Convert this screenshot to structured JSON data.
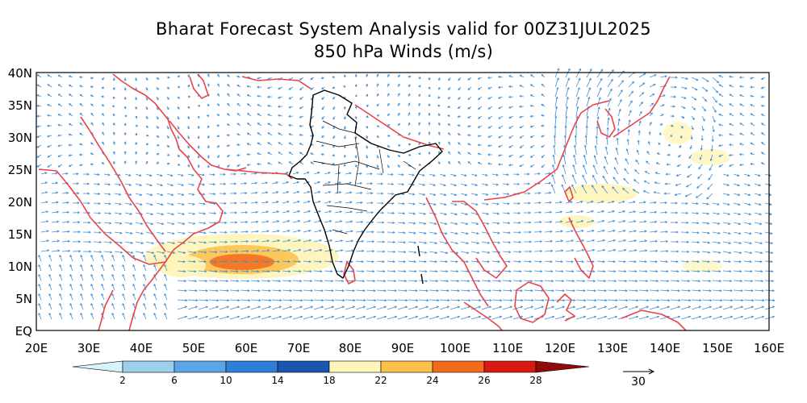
{
  "title": "Bharat Forecast System Analysis valid for 00Z31JUL2025",
  "subtitle": "850 hPa Winds (m/s)",
  "lat_labels": [
    "40N",
    "35N",
    "30N",
    "25N",
    "20N",
    "15N",
    "10N",
    "5N",
    "EQ"
  ],
  "lon_labels": [
    "20E",
    "30E",
    "40E",
    "50E",
    "60E",
    "70E",
    "80E",
    "90E",
    "100E",
    "110E",
    "120E",
    "130E",
    "140E",
    "150E",
    "160E"
  ],
  "colorbar": {
    "ticks": [
      "2",
      "6",
      "10",
      "14",
      "18",
      "22",
      "24",
      "26",
      "28"
    ],
    "colors": [
      "#d8f2fb",
      "#9ccfee",
      "#5ba6e6",
      "#2f7fd9",
      "#1a55b0",
      "#fff5b8",
      "#fbc04a",
      "#f36a1c",
      "#d81b12",
      "#8f0b0b"
    ]
  },
  "reference_vector": {
    "label": "30"
  },
  "colors": {
    "vector": "#3c8fd8",
    "coast": "#e8434a",
    "india": "#000000"
  }
}
